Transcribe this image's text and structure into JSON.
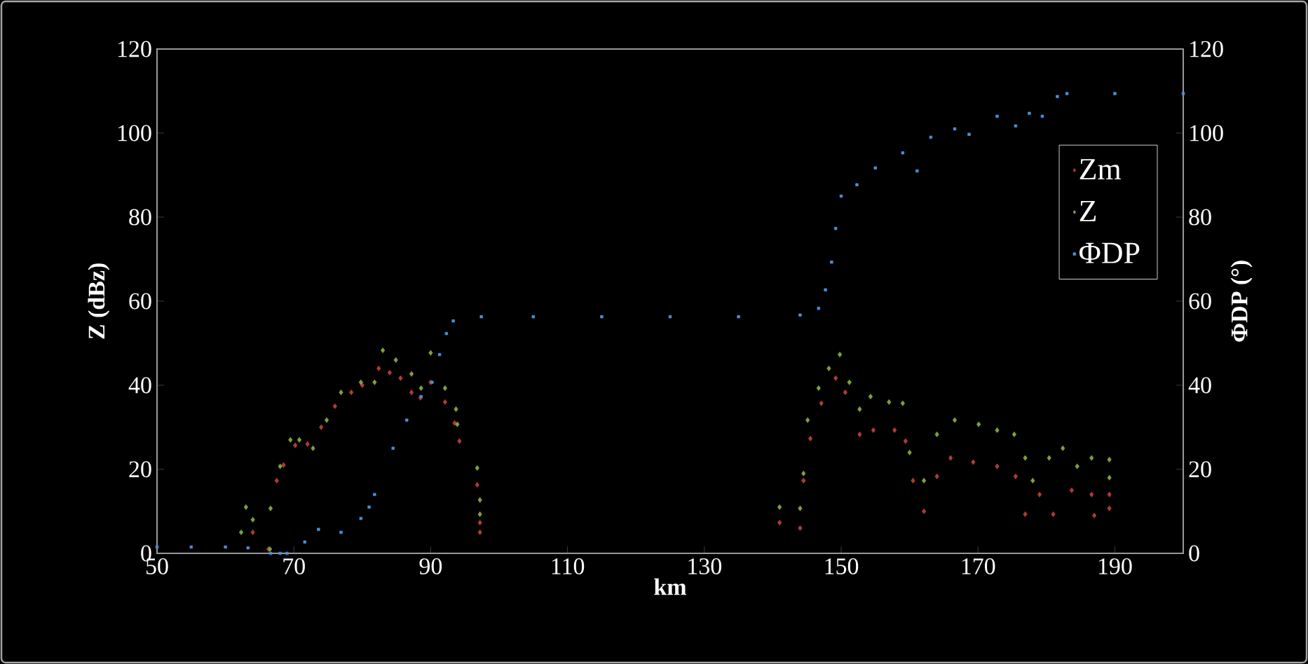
{
  "chart_data": {
    "type": "scatter",
    "xlabel": "km",
    "ylabel": "Z (dBz)",
    "y2label": "ΦDP (°)",
    "xlim": [
      50,
      200
    ],
    "xticks": [
      50,
      70,
      90,
      110,
      130,
      150,
      170,
      190
    ],
    "ylim": [
      0,
      120
    ],
    "yticks": [
      0,
      20,
      40,
      60,
      80,
      100,
      120
    ],
    "y2lim": [
      0,
      120
    ],
    "y2ticks": [
      0,
      20,
      40,
      60,
      80,
      100,
      120
    ],
    "marker": "diamond",
    "legend": "right",
    "series": [
      {
        "name": "Zm",
        "color": "#b33b35",
        "x": [
          64,
          66.3,
          67.5,
          68.5,
          70.2,
          72,
          74,
          76,
          78.4,
          80,
          82.4,
          84,
          85.6,
          87.2,
          88.5,
          90,
          92.1,
          93.5,
          94.2,
          96.8,
          97.2,
          97.2,
          141,
          144,
          144.5,
          145.5,
          147.1,
          149.2,
          150.6,
          152.7,
          154.7,
          157.8,
          159.4,
          160.5,
          162.1,
          164,
          166,
          169.3,
          172.8,
          175.5,
          176.9,
          179,
          181,
          183.7,
          186.6,
          187,
          189.2,
          189.2
        ],
        "values": [
          5,
          1,
          17.3,
          21,
          25.7,
          26,
          30,
          35,
          38.3,
          40,
          44,
          43,
          41.7,
          38.3,
          37,
          40.7,
          36,
          31,
          26.7,
          16.3,
          7.3,
          5,
          7.3,
          6,
          17.3,
          27.3,
          35.7,
          41.7,
          38.3,
          28.3,
          29.3,
          29.3,
          26.7,
          17.3,
          10,
          18.3,
          22.7,
          21.7,
          20.7,
          18.3,
          9.3,
          14,
          9.3,
          15,
          14,
          9,
          14,
          10.7
        ]
      },
      {
        "name": "Z",
        "color": "#7ea23b",
        "x": [
          62.3,
          63,
          64,
          66.5,
          66.6,
          68,
          69.5,
          70.8,
          72.8,
          74.8,
          76.9,
          79.8,
          81.8,
          83,
          84.9,
          87.2,
          88.6,
          90,
          92.1,
          93.7,
          93.9,
          96.8,
          97.2,
          97.2,
          141,
          144,
          144.5,
          145.1,
          146.7,
          148.2,
          149.8,
          151.2,
          152.7,
          154.3,
          157,
          159,
          160,
          162.1,
          164,
          166.6,
          170.1,
          172.8,
          175.3,
          176.9,
          178,
          180.4,
          182.4,
          184.5,
          186.6,
          189.2,
          189.2
        ],
        "values": [
          5,
          11,
          8,
          1,
          10.7,
          20.7,
          27,
          27,
          25,
          31.7,
          38.3,
          40.7,
          40.7,
          48.3,
          46,
          42.7,
          39.3,
          47.7,
          39.3,
          34.3,
          30.7,
          20.3,
          12.7,
          9.3,
          11,
          10.7,
          19,
          31.7,
          39.3,
          44,
          47.3,
          40.7,
          34.3,
          37.3,
          36,
          35.7,
          24,
          17.3,
          28.3,
          31.7,
          30.7,
          29.3,
          28.3,
          22.7,
          17.3,
          22.7,
          25,
          20.7,
          22.7,
          22.3,
          18
        ]
      },
      {
        "name": "ΦDP",
        "color": "#4a8fd8",
        "axis": "y2",
        "marker": "square",
        "x": [
          50,
          55,
          60,
          63.3,
          66.6,
          68,
          69,
          71.6,
          73.6,
          76.9,
          79.8,
          81,
          81.8,
          84.5,
          86.5,
          88.6,
          90.2,
          91.3,
          92.3,
          93.3,
          97.4,
          105,
          115,
          125,
          135,
          144,
          146.7,
          147.7,
          148.6,
          149.2,
          150,
          152.3,
          155,
          159,
          161.1,
          163.1,
          166.6,
          168.7,
          172.8,
          175.5,
          177.5,
          179.4,
          181.6,
          183,
          190,
          200
        ],
        "values": [
          1.5,
          1.5,
          1.5,
          1.3,
          0,
          0,
          0,
          2.7,
          5.7,
          5,
          8.3,
          11,
          14,
          25,
          31.7,
          37.3,
          40.7,
          47.3,
          52.3,
          55.3,
          56.3,
          56.3,
          56.3,
          56.3,
          56.3,
          56.7,
          58.3,
          62.7,
          69.3,
          77.3,
          85,
          87.7,
          91.7,
          95.3,
          91,
          99,
          101,
          99.7,
          104,
          101.7,
          104.7,
          104,
          108.7,
          109.4,
          109.4,
          109.4
        ]
      }
    ]
  }
}
